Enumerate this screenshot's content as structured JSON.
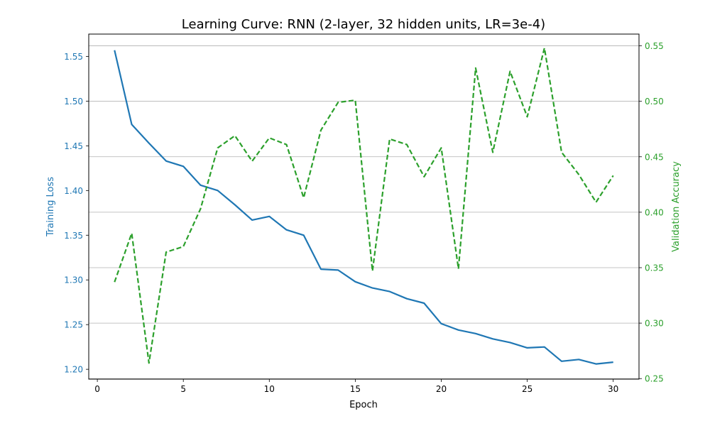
{
  "chart_data": {
    "type": "line",
    "title": "Learning Curve: RNN (2-layer, 32 hidden units, LR=3e-4)",
    "xlabel": "Epoch",
    "ylabel": "Training Loss",
    "y2label": "Validation Accuracy",
    "xlim": [
      -0.5,
      31.5
    ],
    "ylim": [
      1.189,
      1.575
    ],
    "y2lim": [
      0.2495,
      0.5606
    ],
    "xticks": [
      "0",
      "5",
      "10",
      "15",
      "20",
      "25",
      "30"
    ],
    "yticks": [
      "1.20",
      "1.25",
      "1.30",
      "1.35",
      "1.40",
      "1.45",
      "1.50",
      "1.55"
    ],
    "y2ticks": [
      "0.25",
      "0.30",
      "0.35",
      "0.40",
      "0.45",
      "0.50",
      "0.55"
    ],
    "grid": "horizontal, secondary axis",
    "legend": "none",
    "x": [
      1,
      2,
      3,
      4,
      5,
      6,
      7,
      8,
      9,
      10,
      11,
      12,
      13,
      14,
      15,
      16,
      17,
      18,
      19,
      20,
      21,
      22,
      23,
      24,
      25,
      26,
      27,
      28,
      29,
      30
    ],
    "series": [
      {
        "axis": "left",
        "color": "#1f77b4",
        "style": "solid",
        "values": [
          1.557,
          1.474,
          1.453,
          1.433,
          1.427,
          1.406,
          1.4,
          1.384,
          1.367,
          1.371,
          1.356,
          1.35,
          1.312,
          1.311,
          1.298,
          1.291,
          1.287,
          1.279,
          1.274,
          1.251,
          1.244,
          1.24,
          1.234,
          1.23,
          1.224,
          1.225,
          1.209,
          1.211,
          1.206,
          1.208
        ]
      },
      {
        "axis": "right",
        "color": "#2ca02c",
        "style": "dashed",
        "values": [
          0.337,
          0.381,
          0.264,
          0.364,
          0.369,
          0.403,
          0.458,
          0.469,
          0.446,
          0.467,
          0.461,
          0.413,
          0.474,
          0.499,
          0.501,
          0.347,
          0.466,
          0.461,
          0.432,
          0.458,
          0.349,
          0.53,
          0.454,
          0.527,
          0.486,
          0.548,
          0.454,
          0.434,
          0.409,
          0.433
        ]
      }
    ]
  }
}
